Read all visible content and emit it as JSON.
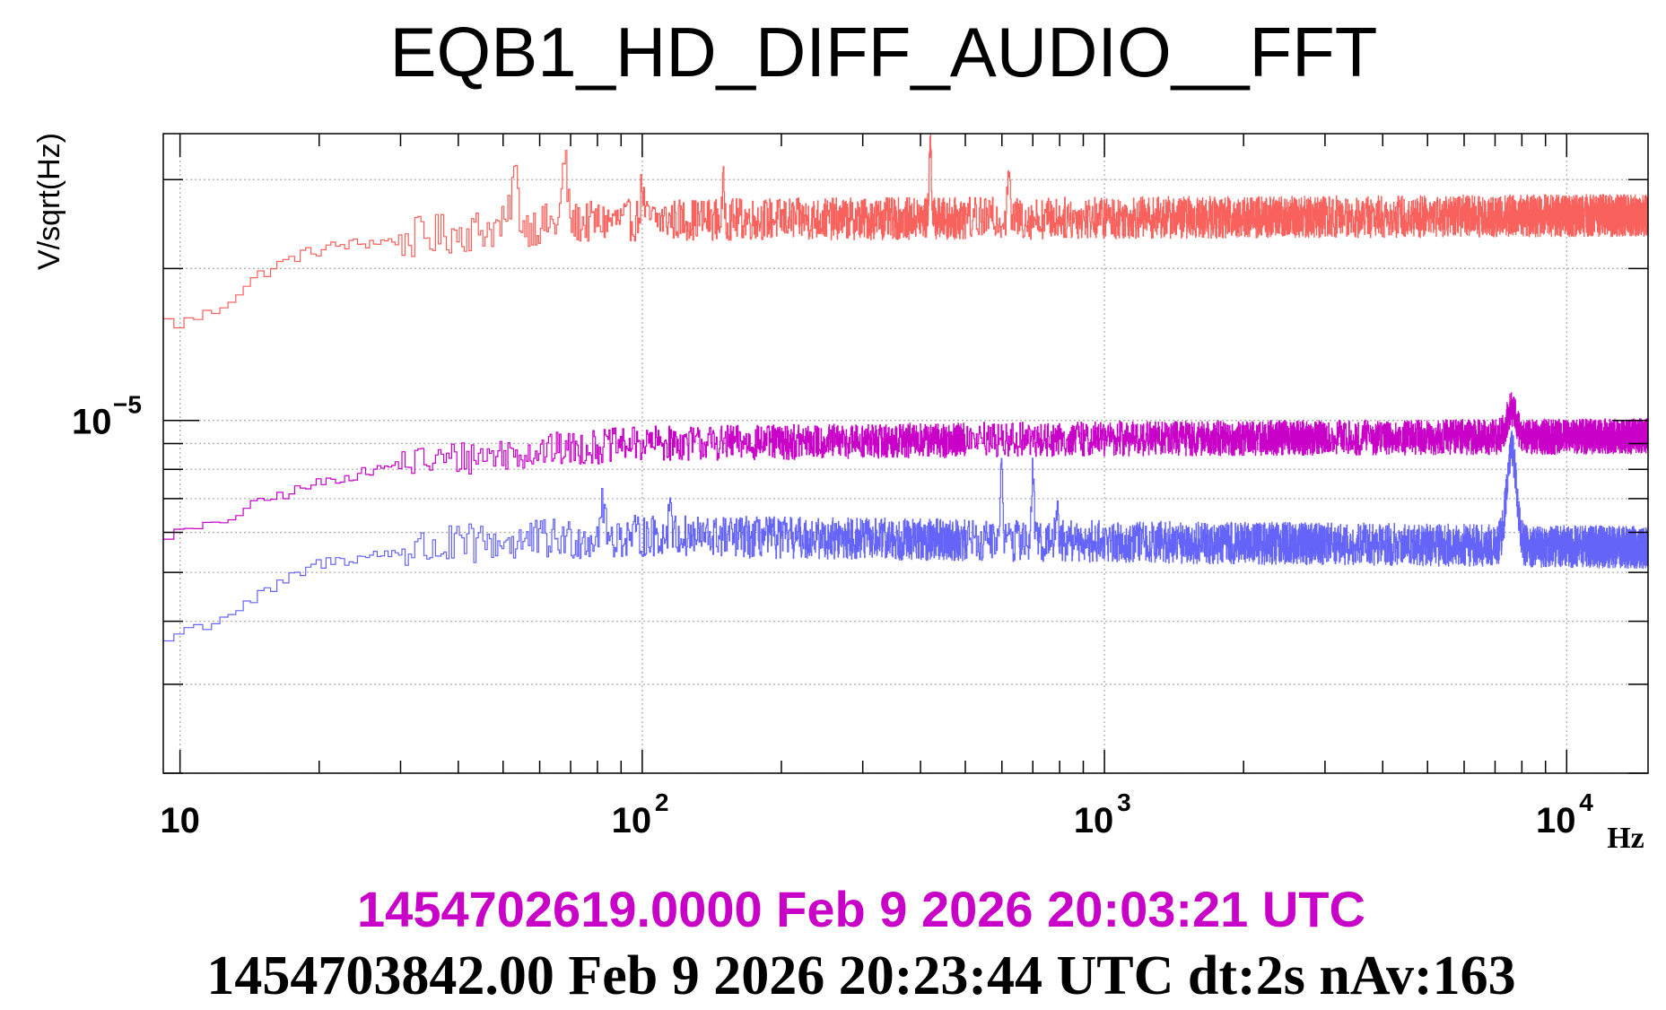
{
  "chart_data": {
    "type": "line",
    "title": "EQB1_HD_DIFF_AUDIO__FFT",
    "ylabel": "V/sqrt(Hz)",
    "xunit": "Hz",
    "xscale": "log",
    "yscale": "log",
    "xlim": [
      9.2,
      15000
    ],
    "ylim": [
      2e-06,
      3.7e-05
    ],
    "grid": true,
    "x_ticks": [
      {
        "value": 10,
        "base": "10",
        "exp": ""
      },
      {
        "value": 100,
        "base": "10",
        "exp": "2"
      },
      {
        "value": 1000,
        "base": "10",
        "exp": "3"
      },
      {
        "value": 10000,
        "base": "10",
        "exp": "4"
      }
    ],
    "y_ticks": [
      {
        "value": 1e-05,
        "base": "10",
        "exp": "−5"
      }
    ],
    "series": [
      {
        "color": "#f8615c",
        "noise_rel": 0.06,
        "points": [
          [
            9.2,
            1.58e-05
          ],
          [
            10,
            1.55e-05
          ],
          [
            12,
            1.65e-05
          ],
          [
            15,
            1.95e-05
          ],
          [
            18,
            2.12e-05
          ],
          [
            22,
            2.22e-05
          ],
          [
            30,
            2.28e-05
          ],
          [
            50,
            2.42e-05
          ],
          [
            100,
            2.5e-05
          ],
          [
            1000,
            2.52e-05
          ],
          [
            15000,
            2.55e-05
          ]
        ],
        "peaks": [
          [
            53,
            3.1e-05
          ],
          [
            68,
            3.3e-05
          ],
          [
            100,
            2.9e-05
          ],
          [
            150,
            2.9e-05
          ],
          [
            420,
            3.6e-05
          ],
          [
            620,
            3.2e-05
          ]
        ]
      },
      {
        "color": "#c800c8",
        "noise_rel": 0.05,
        "points": [
          [
            9.2,
            5.9e-06
          ],
          [
            10,
            6e-06
          ],
          [
            12,
            6.2e-06
          ],
          [
            15,
            6.9e-06
          ],
          [
            20,
            7.5e-06
          ],
          [
            30,
            8.2e-06
          ],
          [
            50,
            8.6e-06
          ],
          [
            100,
            9e-06
          ],
          [
            1000,
            9.2e-06
          ],
          [
            15000,
            9.3e-06
          ]
        ],
        "peaks": [
          [
            7600,
            1.05e-05
          ]
        ]
      },
      {
        "color": "#6464f8",
        "noise_rel": 0.06,
        "points": [
          [
            9.2,
            3.6e-06
          ],
          [
            10,
            3.8e-06
          ],
          [
            12,
            4e-06
          ],
          [
            15,
            4.5e-06
          ],
          [
            20,
            5.2e-06
          ],
          [
            30,
            5.5e-06
          ],
          [
            50,
            5.75e-06
          ],
          [
            100,
            5.9e-06
          ],
          [
            1000,
            5.75e-06
          ],
          [
            7000,
            5.65e-06
          ],
          [
            15000,
            5.6e-06
          ]
        ],
        "peaks": [
          [
            82,
            6.9e-06
          ],
          [
            115,
            7.1e-06
          ],
          [
            600,
            8.4e-06
          ],
          [
            700,
            8e-06
          ],
          [
            790,
            7e-06
          ],
          [
            7600,
            8.8e-06
          ]
        ]
      }
    ],
    "reference_time": "1454702619.0000 Feb 9 2026 20:03:21 UTC",
    "footer_text": "1454703842.00 Feb 9 2026 20:23:44 UTC dt:2s nAv:163",
    "colors": {
      "reference_time": "#c800c8",
      "axis": "#000000",
      "grid": "#b0b0b0"
    }
  }
}
